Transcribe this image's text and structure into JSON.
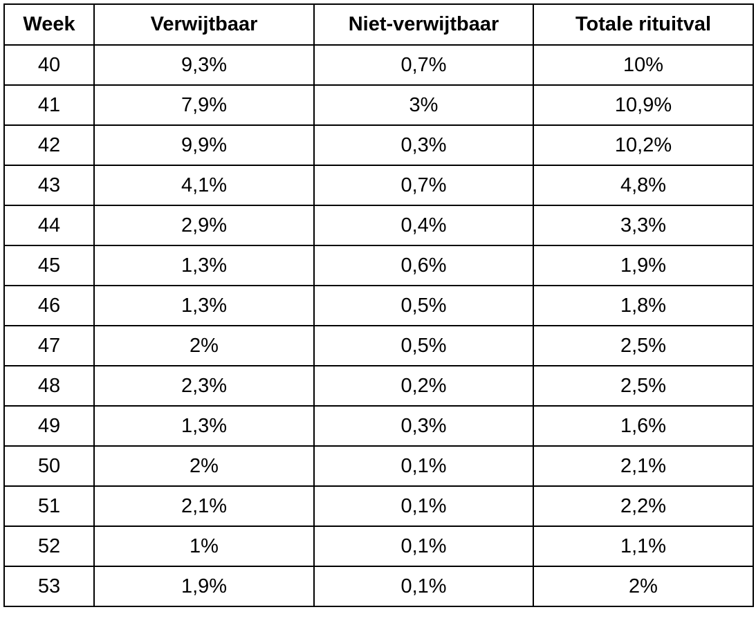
{
  "chart_data": {
    "type": "table",
    "columns": [
      "Week",
      "Verwijtbaar",
      "Niet-verwijtbaar",
      "Totale rituitval"
    ],
    "rows": [
      [
        "40",
        "9,3%",
        "0,7%",
        "10%"
      ],
      [
        "41",
        "7,9%",
        "3%",
        "10,9%"
      ],
      [
        "42",
        "9,9%",
        "0,3%",
        "10,2%"
      ],
      [
        "43",
        "4,1%",
        "0,7%",
        "4,8%"
      ],
      [
        "44",
        "2,9%",
        "0,4%",
        "3,3%"
      ],
      [
        "45",
        "1,3%",
        "0,6%",
        "1,9%"
      ],
      [
        "46",
        "1,3%",
        "0,5%",
        "1,8%"
      ],
      [
        "47",
        "2%",
        "0,5%",
        "2,5%"
      ],
      [
        "48",
        "2,3%",
        "0,2%",
        "2,5%"
      ],
      [
        "49",
        "1,3%",
        "0,3%",
        "1,6%"
      ],
      [
        "50",
        "2%",
        "0,1%",
        "2,1%"
      ],
      [
        "51",
        "2,1%",
        "0,1%",
        "2,2%"
      ],
      [
        "52",
        "1%",
        "0,1%",
        "1,1%"
      ],
      [
        "53",
        "1,9%",
        "0,1%",
        "2%"
      ]
    ],
    "series": [
      {
        "name": "Verwijtbaar",
        "values": [
          9.3,
          7.9,
          9.9,
          4.1,
          2.9,
          1.3,
          1.3,
          2,
          2.3,
          1.3,
          2,
          2.1,
          1,
          1.9
        ]
      },
      {
        "name": "Niet-verwijtbaar",
        "values": [
          0.7,
          3,
          0.3,
          0.7,
          0.4,
          0.6,
          0.5,
          0.5,
          0.2,
          0.3,
          0.1,
          0.1,
          0.1,
          0.1
        ]
      },
      {
        "name": "Totale rituitval",
        "values": [
          10,
          10.9,
          10.2,
          4.8,
          3.3,
          1.9,
          1.8,
          2.5,
          2.5,
          1.6,
          2.1,
          2.2,
          1.1,
          2
        ]
      }
    ],
    "categories": [
      "40",
      "41",
      "42",
      "43",
      "44",
      "45",
      "46",
      "47",
      "48",
      "49",
      "50",
      "51",
      "52",
      "53"
    ]
  }
}
